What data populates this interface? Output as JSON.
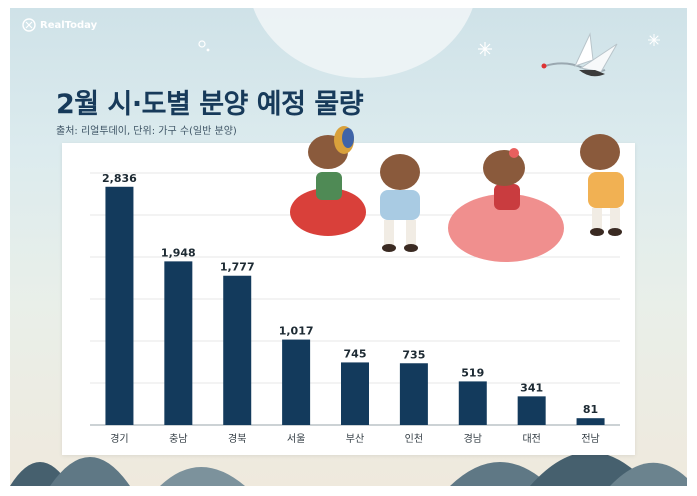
{
  "brand": "RealToday",
  "title": "2월 시·도별 분양 예정 물량",
  "source": "출처: 리얼투데이, 단위: 가구 수(일반 분양)",
  "colors": {
    "bar": "#133a5c",
    "title": "#173a5a",
    "grid": "#e7e7e7"
  },
  "chart_data": {
    "type": "bar",
    "title": "2월 시·도별 분양 예정 물량",
    "categories": [
      "경기",
      "충남",
      "경북",
      "서울",
      "부산",
      "인천",
      "경남",
      "대전",
      "전남"
    ],
    "values": [
      2836,
      1948,
      1777,
      1017,
      745,
      735,
      519,
      341,
      81
    ],
    "value_labels": [
      "2,836",
      "1,948",
      "1,777",
      "1,017",
      "745",
      "735",
      "519",
      "341",
      "81"
    ],
    "ylim": [
      0,
      3000
    ],
    "grid": true,
    "legend": "none"
  }
}
